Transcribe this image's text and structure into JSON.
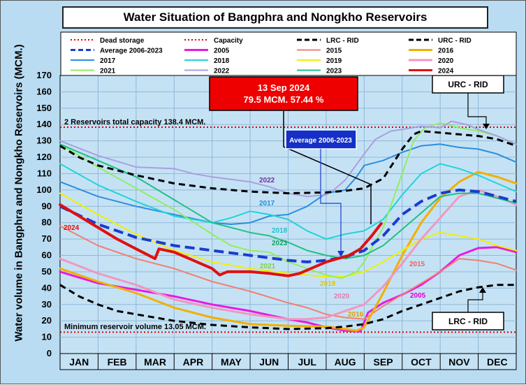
{
  "chart_data": {
    "type": "line",
    "title": "Water Situation of Bangphra and Nongkho Reservoirs",
    "ylabel": "Water volume in Bangphra and Nongkho Reservoirs (MCM.)",
    "xlabel": "",
    "ylim": [
      0,
      170
    ],
    "yticks": [
      0,
      10,
      20,
      30,
      40,
      50,
      60,
      70,
      80,
      90,
      100,
      110,
      120,
      130,
      140,
      150,
      160,
      170
    ],
    "xlim": [
      0,
      12
    ],
    "months": [
      "JAN",
      "FEB",
      "MAR",
      "APR",
      "MAY",
      "JUN",
      "JUL",
      "AUG",
      "SEP",
      "OCT",
      "NOV",
      "DEC"
    ],
    "grid": true,
    "legend_position": "top",
    "annotations": {
      "capacity_line": "2 Reservoirs total capacity 138.4 MCM.",
      "minimum_line": "Minimum reservoir volume 13.05 MCM.",
      "current_date": "13 Sep 2024",
      "current_value": "79.5 MCM. 57.44 %",
      "average_box": "Average 2006-2023",
      "urc_box": "URC - RID",
      "lrc_box": "LRC - RID"
    },
    "series": [
      {
        "name": "Dead storage",
        "color": "#e00000",
        "style": "dotted",
        "width": 2,
        "points": [
          [
            0,
            13.05
          ],
          [
            12,
            13.05
          ]
        ]
      },
      {
        "name": "Capacity",
        "color": "#e00000",
        "style": "dotted",
        "width": 2,
        "points": [
          [
            0,
            138.4
          ],
          [
            12,
            138.4
          ]
        ]
      },
      {
        "name": "LRC - RID",
        "color": "#000000",
        "style": "dashed",
        "width": 3,
        "points": [
          [
            0,
            42
          ],
          [
            0.5,
            35
          ],
          [
            1,
            30
          ],
          [
            1.5,
            26
          ],
          [
            2,
            24
          ],
          [
            3,
            20
          ],
          [
            4,
            17.5
          ],
          [
            5,
            16
          ],
          [
            6,
            15
          ],
          [
            7,
            15.5
          ],
          [
            7.5,
            16.5
          ],
          [
            8,
            18
          ],
          [
            8.5,
            21
          ],
          [
            9,
            26
          ],
          [
            9.5,
            30
          ],
          [
            10,
            34
          ],
          [
            10.5,
            38
          ],
          [
            11,
            40.5
          ],
          [
            11.5,
            42
          ],
          [
            12,
            42
          ]
        ]
      },
      {
        "name": "URC - RID",
        "color": "#000000",
        "style": "dashed",
        "width": 3,
        "points": [
          [
            0,
            127
          ],
          [
            0.5,
            120
          ],
          [
            1,
            115
          ],
          [
            2,
            109
          ],
          [
            3,
            104
          ],
          [
            4,
            101
          ],
          [
            5,
            99
          ],
          [
            6,
            98
          ],
          [
            7,
            98.5
          ],
          [
            7.5,
            99.5
          ],
          [
            8,
            101
          ],
          [
            8.5,
            107
          ],
          [
            9,
            125
          ],
          [
            9.3,
            134
          ],
          [
            9.5,
            136
          ],
          [
            10,
            135
          ],
          [
            10.5,
            134
          ],
          [
            11,
            133
          ],
          [
            11.5,
            131
          ],
          [
            12,
            127
          ]
        ]
      },
      {
        "name": "Average 2006-2023",
        "color": "#1a3cd0",
        "style": "dashed",
        "width": 4,
        "points": [
          [
            0,
            90
          ],
          [
            1,
            79
          ],
          [
            2,
            71
          ],
          [
            3,
            66
          ],
          [
            4,
            63
          ],
          [
            5,
            60
          ],
          [
            6,
            57
          ],
          [
            6.5,
            56
          ],
          [
            7,
            57
          ],
          [
            7.5,
            59
          ],
          [
            8,
            63
          ],
          [
            8.5,
            72
          ],
          [
            9,
            85
          ],
          [
            9.5,
            93
          ],
          [
            10,
            98
          ],
          [
            10.5,
            100
          ],
          [
            11,
            99
          ],
          [
            11.5,
            96
          ],
          [
            12,
            93
          ]
        ]
      },
      {
        "name": "2005",
        "color": "#e81ae0",
        "style": "solid",
        "width": 3,
        "points": [
          [
            0,
            50
          ],
          [
            1,
            43
          ],
          [
            2,
            39
          ],
          [
            3,
            35
          ],
          [
            4,
            30
          ],
          [
            5,
            26
          ],
          [
            6,
            21
          ],
          [
            6.5,
            19
          ],
          [
            7,
            16
          ],
          [
            7.5,
            14
          ],
          [
            7.9,
            13.5
          ],
          [
            8.1,
            25
          ],
          [
            8.5,
            31
          ],
          [
            9,
            36
          ],
          [
            9.5,
            42
          ],
          [
            10,
            50
          ],
          [
            10.5,
            60
          ],
          [
            11,
            64.5
          ],
          [
            11.5,
            65
          ],
          [
            12,
            62
          ]
        ]
      },
      {
        "name": "2015",
        "color": "#f08070",
        "style": "solid",
        "width": 2,
        "points": [
          [
            0,
            78
          ],
          [
            1,
            66
          ],
          [
            2,
            58
          ],
          [
            3,
            52
          ],
          [
            4,
            44
          ],
          [
            5,
            38
          ],
          [
            6,
            31
          ],
          [
            6.5,
            28
          ],
          [
            7,
            24
          ],
          [
            7.5,
            22
          ],
          [
            8,
            21
          ],
          [
            8.5,
            29
          ],
          [
            9,
            36
          ],
          [
            9.5,
            43
          ],
          [
            10,
            50
          ],
          [
            10.5,
            58
          ],
          [
            11,
            57
          ],
          [
            11.5,
            55
          ],
          [
            12,
            51
          ]
        ]
      },
      {
        "name": "2016",
        "color": "#f0b000",
        "style": "solid",
        "width": 3,
        "points": [
          [
            0,
            52
          ],
          [
            1,
            44
          ],
          [
            2,
            37
          ],
          [
            3,
            28
          ],
          [
            4,
            22
          ],
          [
            5,
            18
          ],
          [
            6,
            17
          ],
          [
            7,
            16.5
          ],
          [
            7.5,
            15
          ],
          [
            7.8,
            14
          ],
          [
            8,
            16
          ],
          [
            8.5,
            37
          ],
          [
            9,
            60
          ],
          [
            9.5,
            80
          ],
          [
            10,
            95
          ],
          [
            10.5,
            105
          ],
          [
            11,
            111
          ],
          [
            11.5,
            108
          ],
          [
            12,
            104
          ]
        ]
      },
      {
        "name": "2017",
        "color": "#2a8ee0",
        "style": "solid",
        "width": 2,
        "points": [
          [
            0,
            105
          ],
          [
            1,
            96
          ],
          [
            2,
            90
          ],
          [
            3,
            85
          ],
          [
            4,
            80
          ],
          [
            4.5,
            79
          ],
          [
            5,
            80
          ],
          [
            5.5,
            84
          ],
          [
            6,
            85
          ],
          [
            6.5,
            90
          ],
          [
            7,
            98
          ],
          [
            7.5,
            100
          ],
          [
            7.8,
            108
          ],
          [
            8,
            115
          ],
          [
            8.5,
            118
          ],
          [
            9,
            123
          ],
          [
            9.5,
            127
          ],
          [
            10,
            128
          ],
          [
            10.5,
            126
          ],
          [
            11,
            125
          ],
          [
            11.5,
            122
          ],
          [
            12,
            117
          ]
        ]
      },
      {
        "name": "2018",
        "color": "#20d4d8",
        "style": "solid",
        "width": 2,
        "points": [
          [
            0,
            116
          ],
          [
            1,
            103
          ],
          [
            2,
            93
          ],
          [
            3,
            84
          ],
          [
            4,
            80
          ],
          [
            4.5,
            83
          ],
          [
            5,
            87
          ],
          [
            5.5,
            85
          ],
          [
            6,
            82
          ],
          [
            6.5,
            75
          ],
          [
            7,
            70
          ],
          [
            7.5,
            73
          ],
          [
            8,
            75
          ],
          [
            8.5,
            82
          ],
          [
            9,
            97
          ],
          [
            9.5,
            110
          ],
          [
            10,
            116
          ],
          [
            10.5,
            113
          ],
          [
            11,
            109
          ],
          [
            11.5,
            104
          ],
          [
            12,
            99
          ]
        ]
      },
      {
        "name": "2019",
        "color": "#f0f000",
        "style": "solid",
        "width": 2,
        "points": [
          [
            0,
            98
          ],
          [
            1,
            85
          ],
          [
            2,
            73
          ],
          [
            3,
            63
          ],
          [
            4,
            56
          ],
          [
            5,
            52
          ],
          [
            6,
            49
          ],
          [
            6.5,
            48
          ],
          [
            7,
            47
          ],
          [
            7.5,
            47
          ],
          [
            8,
            50
          ],
          [
            8.5,
            56
          ],
          [
            9,
            63
          ],
          [
            9.5,
            70
          ],
          [
            10,
            74
          ],
          [
            10.5,
            72
          ],
          [
            11,
            70
          ],
          [
            11.5,
            66
          ],
          [
            12,
            63
          ]
        ]
      },
      {
        "name": "2020",
        "color": "#f098c0",
        "style": "solid",
        "width": 3,
        "points": [
          [
            0,
            58
          ],
          [
            1,
            49
          ],
          [
            2,
            42
          ],
          [
            3,
            33
          ],
          [
            4,
            28
          ],
          [
            5,
            24
          ],
          [
            6,
            21
          ],
          [
            6.5,
            21
          ],
          [
            7,
            22
          ],
          [
            7.5,
            26
          ],
          [
            8,
            30
          ],
          [
            8.5,
            41
          ],
          [
            9,
            55
          ],
          [
            9.5,
            70
          ],
          [
            10,
            83
          ],
          [
            10.5,
            96
          ],
          [
            11,
            100
          ],
          [
            11.5,
            96
          ],
          [
            12,
            91
          ]
        ]
      },
      {
        "name": "2021",
        "color": "#90ee60",
        "style": "solid",
        "width": 2,
        "points": [
          [
            0,
            128
          ],
          [
            1,
            114
          ],
          [
            2,
            101
          ],
          [
            3,
            88
          ],
          [
            4,
            73
          ],
          [
            4.5,
            66
          ],
          [
            5,
            63
          ],
          [
            5.5,
            62
          ],
          [
            6,
            56
          ],
          [
            6.5,
            52
          ],
          [
            7,
            48
          ],
          [
            7.4,
            46
          ],
          [
            7.8,
            50
          ],
          [
            8,
            56
          ],
          [
            8.5,
            77
          ],
          [
            9,
            110
          ],
          [
            9.3,
            130
          ],
          [
            9.6,
            138
          ],
          [
            10,
            141
          ],
          [
            10.5,
            138
          ],
          [
            11,
            136
          ],
          [
            11.5,
            133
          ],
          [
            12,
            128
          ]
        ]
      },
      {
        "name": "2022",
        "color": "#a8a0e0",
        "style": "solid",
        "width": 2,
        "points": [
          [
            0,
            130
          ],
          [
            1,
            121
          ],
          [
            2,
            114
          ],
          [
            3,
            113
          ],
          [
            3.5,
            110
          ],
          [
            4,
            108
          ],
          [
            5,
            105
          ],
          [
            5.5,
            102
          ],
          [
            6,
            98
          ],
          [
            6.5,
            96
          ],
          [
            7,
            97
          ],
          [
            7.2,
            100
          ],
          [
            7.5,
            106
          ],
          [
            8,
            122
          ],
          [
            8.3,
            131
          ],
          [
            8.7,
            136
          ],
          [
            9,
            137
          ],
          [
            9.5,
            139
          ],
          [
            10,
            138
          ],
          [
            10.3,
            142
          ],
          [
            10.7,
            140
          ],
          [
            11,
            137
          ],
          [
            11.5,
            133
          ],
          [
            12,
            128
          ]
        ]
      },
      {
        "name": "2023",
        "color": "#20c080",
        "style": "solid",
        "width": 2,
        "points": [
          [
            0,
            128
          ],
          [
            1,
            118
          ],
          [
            2,
            108
          ],
          [
            3,
            94
          ],
          [
            4,
            80
          ],
          [
            4.5,
            77
          ],
          [
            5,
            74
          ],
          [
            5.5,
            72
          ],
          [
            6,
            68
          ],
          [
            6.5,
            63
          ],
          [
            7,
            60
          ],
          [
            7.5,
            58
          ],
          [
            8,
            60
          ],
          [
            8.5,
            66
          ],
          [
            9,
            76
          ],
          [
            9.5,
            86
          ],
          [
            10,
            96
          ],
          [
            10.5,
            98
          ],
          [
            11,
            98
          ],
          [
            11.5,
            95
          ],
          [
            12,
            92
          ]
        ]
      },
      {
        "name": "2024",
        "color": "#e01010",
        "style": "solid",
        "width": 4,
        "points": [
          [
            0,
            91
          ],
          [
            0.5,
            84
          ],
          [
            1,
            77
          ],
          [
            1.5,
            70
          ],
          [
            2,
            64
          ],
          [
            2.5,
            58
          ],
          [
            2.6,
            64
          ],
          [
            3,
            62
          ],
          [
            3.5,
            57
          ],
          [
            4,
            52
          ],
          [
            4.2,
            48
          ],
          [
            4.4,
            50
          ],
          [
            5,
            50
          ],
          [
            5.5,
            49
          ],
          [
            6,
            47.5
          ],
          [
            6.3,
            49
          ],
          [
            6.6,
            52
          ],
          [
            7,
            56
          ],
          [
            7.3,
            58
          ],
          [
            7.6,
            60
          ],
          [
            7.9,
            64
          ],
          [
            8.2,
            72
          ],
          [
            8.45,
            79.5
          ]
        ]
      }
    ]
  }
}
